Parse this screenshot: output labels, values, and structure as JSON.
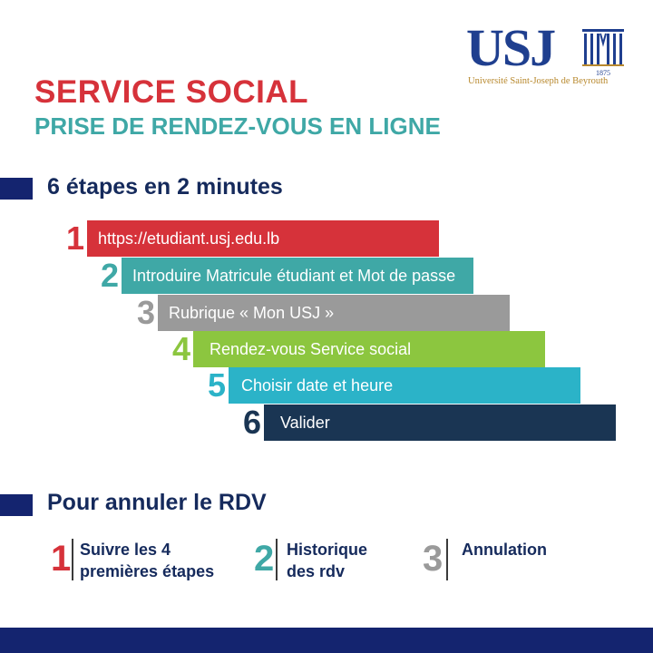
{
  "logo": {
    "letters": "USJ",
    "year": "1875",
    "university": "Université Saint-Joseph de Beyrouth"
  },
  "title": {
    "main": "SERVICE SOCIAL",
    "sub": "PRISE DE RENDEZ-VOUS EN LIGNE"
  },
  "steps_section": {
    "heading": "6 étapes en 2 minutes",
    "steps": [
      {
        "num": "1",
        "label": "https://etudiant.usj.edu.lb",
        "color": "#d6323a"
      },
      {
        "num": "2",
        "label": "Introduire Matricule étudiant et Mot de passe",
        "color": "#3fa8a6"
      },
      {
        "num": "3",
        "label": "Rubrique « Mon USJ »",
        "color": "#9a9a9a"
      },
      {
        "num": "4",
        "label": "Rendez-vous Service social",
        "color": "#8cc63f"
      },
      {
        "num": "5",
        "label": "Choisir date et heure",
        "color": "#2bb3c8"
      },
      {
        "num": "6",
        "label": "Valider",
        "color": "#1a3553"
      }
    ]
  },
  "cancel_section": {
    "heading": "Pour annuler le RDV",
    "items": [
      {
        "num": "1",
        "line1": "Suivre les 4",
        "line2": "premières étapes",
        "color": "#d6323a"
      },
      {
        "num": "2",
        "line1": "Historique",
        "line2": "des rdv",
        "color": "#3fa8a6"
      },
      {
        "num": "3",
        "line1": "Annulation",
        "line2": "",
        "color": "#9a9a9a"
      }
    ]
  },
  "colors": {
    "navy": "#14246f",
    "red": "#d6323a",
    "teal": "#3fa8a6",
    "gold": "#b8892e"
  }
}
